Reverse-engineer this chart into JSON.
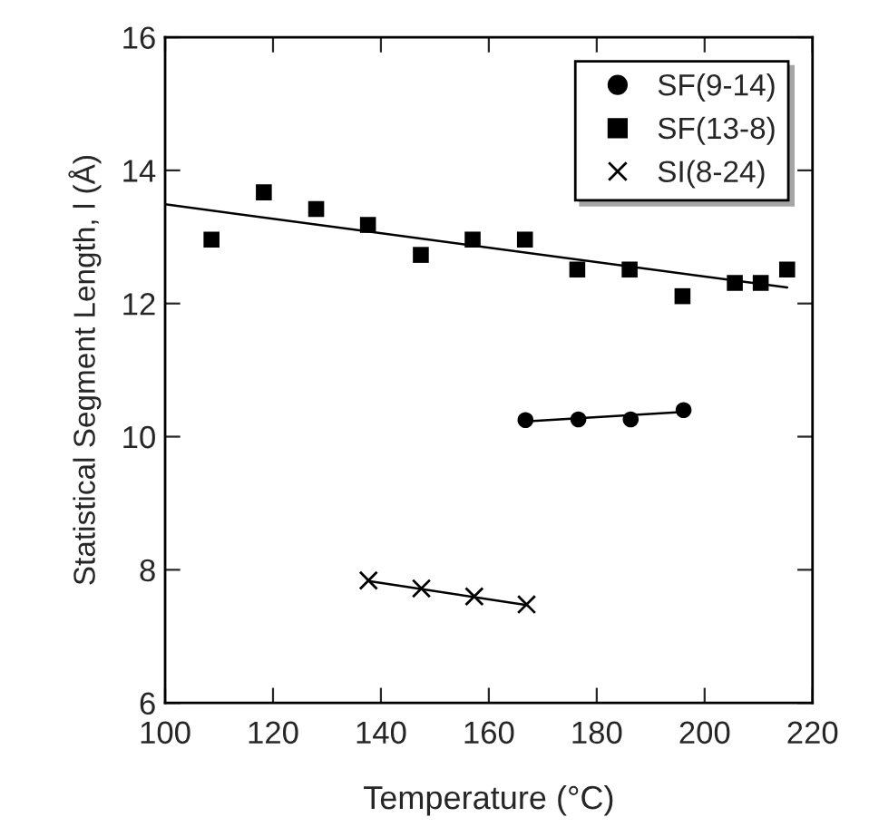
{
  "chart_data": {
    "type": "scatter",
    "xlabel": "Temperature (°C)",
    "ylabel": "Statistical Segment Length, l (Å)",
    "xlim": [
      100,
      220
    ],
    "xticks": [
      100,
      120,
      140,
      160,
      180,
      200,
      220
    ],
    "ylim": [
      6,
      16
    ],
    "yticks": [
      6,
      8,
      10,
      12,
      14,
      16
    ],
    "grid": false,
    "legend": "top right",
    "series": [
      {
        "name": "SF(9-14)",
        "marker": "circle",
        "color": "#000000",
        "x": [
          166.8,
          176.6,
          186.3,
          196.1
        ],
        "values": [
          10.25,
          10.26,
          10.26,
          10.4
        ]
      },
      {
        "name": "SF(13-8)",
        "marker": "square",
        "color": "#000000",
        "x": [
          108.6,
          118.3,
          128.0,
          137.6,
          147.4,
          157.0,
          166.7,
          176.4,
          186.1,
          195.9,
          205.6,
          210.4,
          215.3
        ],
        "values": [
          12.96,
          13.67,
          13.42,
          13.18,
          12.73,
          12.96,
          12.96,
          12.51,
          12.51,
          12.11,
          12.31,
          12.31,
          12.51
        ]
      },
      {
        "name": "SI(8-24)",
        "marker": "cross",
        "color": "#000000",
        "x": [
          137.7,
          147.5,
          157.3,
          167.0
        ],
        "values": [
          7.84,
          7.72,
          7.6,
          7.48
        ]
      },
      {
        "type": "line",
        "marker": "none",
        "line_style": "solid",
        "color": "#000000",
        "x": [
          166.8,
          196.1
        ],
        "values": [
          10.23,
          10.37
        ]
      },
      {
        "type": "line",
        "marker": "none",
        "line_style": "solid",
        "color": "#000000",
        "x": [
          100,
          215.3
        ],
        "values": [
          13.49,
          12.24
        ]
      },
      {
        "type": "line",
        "marker": "none",
        "line_style": "solid",
        "color": "#000000",
        "x": [
          137.7,
          167.0
        ],
        "values": [
          7.83,
          7.47
        ]
      }
    ]
  }
}
